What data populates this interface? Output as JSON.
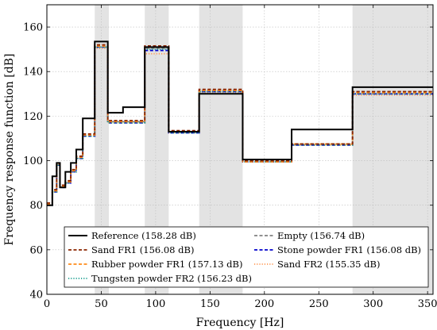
{
  "chart_data": {
    "type": "line",
    "title": "",
    "xlabel": "Frequency [Hz]",
    "ylabel": "Frequency response function [dB]",
    "xlim": [
      0,
      355
    ],
    "ylim": [
      40,
      170
    ],
    "xticks": [
      0,
      50,
      100,
      150,
      200,
      250,
      300,
      350
    ],
    "yticks": [
      40,
      60,
      80,
      100,
      120,
      140,
      160
    ],
    "grid": true,
    "legend_position": "bottom",
    "shaded_bands": [
      [
        44,
        57
      ],
      [
        90,
        112
      ],
      [
        140,
        180
      ],
      [
        281,
        355
      ]
    ],
    "series": [
      {
        "name": "Reference (158.28 dB)",
        "color": "#000000",
        "dash": "solid",
        "steps": [
          [
            0,
            80
          ],
          [
            5,
            93
          ],
          [
            9,
            99
          ],
          [
            12,
            88
          ],
          [
            17,
            95
          ],
          [
            22,
            99
          ],
          [
            27,
            105
          ],
          [
            33,
            119
          ],
          [
            44,
            153.5
          ],
          [
            56,
            121.5
          ],
          [
            70,
            124
          ],
          [
            90,
            151
          ],
          [
            112,
            113
          ],
          [
            140,
            130
          ],
          [
            180,
            100.5
          ],
          [
            225,
            114
          ],
          [
            281,
            133
          ],
          [
            355,
            133
          ]
        ]
      },
      {
        "name": "Sand FR1 (156.08 dB)",
        "color": "#8B2500",
        "dash": "dashed",
        "steps": [
          [
            0,
            81
          ],
          [
            5,
            87
          ],
          [
            9,
            99
          ],
          [
            12,
            89
          ],
          [
            17,
            91
          ],
          [
            22,
            96
          ],
          [
            27,
            102
          ],
          [
            33,
            112
          ],
          [
            44,
            152
          ],
          [
            56,
            118
          ],
          [
            70,
            118
          ],
          [
            90,
            151.5
          ],
          [
            112,
            113.5
          ],
          [
            140,
            132
          ],
          [
            180,
            100
          ],
          [
            225,
            107.5
          ],
          [
            281,
            131
          ],
          [
            355,
            131
          ]
        ]
      },
      {
        "name": "Rubber powder FR1 (157.13 dB)",
        "color": "#FF8C1A",
        "dash": "dashed",
        "steps": [
          [
            0,
            80.5
          ],
          [
            5,
            86.5
          ],
          [
            9,
            98.5
          ],
          [
            12,
            88.5
          ],
          [
            17,
            90.5
          ],
          [
            22,
            95.5
          ],
          [
            27,
            101.5
          ],
          [
            33,
            111.5
          ],
          [
            44,
            151.5
          ],
          [
            56,
            117.5
          ],
          [
            70,
            117.5
          ],
          [
            90,
            151
          ],
          [
            112,
            113
          ],
          [
            140,
            131.5
          ],
          [
            180,
            99.5
          ],
          [
            225,
            107.5
          ],
          [
            281,
            130.5
          ],
          [
            355,
            130.5
          ]
        ]
      },
      {
        "name": "Tungsten powder FR2 (156.23 dB)",
        "color": "#1A9E8F",
        "dash": "dotted",
        "steps": [
          [
            0,
            80
          ],
          [
            5,
            86
          ],
          [
            9,
            98
          ],
          [
            12,
            88
          ],
          [
            17,
            90
          ],
          [
            22,
            95
          ],
          [
            27,
            101
          ],
          [
            33,
            111
          ],
          [
            44,
            151
          ],
          [
            56,
            117
          ],
          [
            70,
            117
          ],
          [
            90,
            150
          ],
          [
            112,
            112.5
          ],
          [
            140,
            131
          ],
          [
            180,
            99.5
          ],
          [
            225,
            107
          ],
          [
            281,
            130
          ],
          [
            355,
            130
          ]
        ]
      },
      {
        "name": "Empty (156.74 dB)",
        "color": "#808080",
        "dash": "dashed",
        "steps": [
          [
            0,
            80.5
          ],
          [
            5,
            86.5
          ],
          [
            9,
            98.5
          ],
          [
            12,
            88.5
          ],
          [
            17,
            90.5
          ],
          [
            22,
            95.5
          ],
          [
            27,
            101.5
          ],
          [
            33,
            111.5
          ],
          [
            44,
            151
          ],
          [
            56,
            117.5
          ],
          [
            70,
            117.5
          ],
          [
            90,
            150.5
          ],
          [
            112,
            113
          ],
          [
            140,
            131.5
          ],
          [
            180,
            100
          ],
          [
            225,
            107.5
          ],
          [
            281,
            131
          ],
          [
            355,
            131
          ]
        ]
      },
      {
        "name": "Stone powder FR1 (156.08 dB)",
        "color": "#0000CC",
        "dash": "dashed",
        "steps": [
          [
            0,
            80
          ],
          [
            5,
            86
          ],
          [
            9,
            98
          ],
          [
            12,
            88
          ],
          [
            17,
            90
          ],
          [
            22,
            95
          ],
          [
            27,
            101
          ],
          [
            33,
            111
          ],
          [
            44,
            151
          ],
          [
            56,
            117
          ],
          [
            70,
            117
          ],
          [
            90,
            149.5
          ],
          [
            112,
            112.5
          ],
          [
            140,
            131
          ],
          [
            180,
            99.5
          ],
          [
            225,
            107
          ],
          [
            281,
            130
          ],
          [
            355,
            130
          ]
        ]
      },
      {
        "name": "Sand FR2 (155.35 dB)",
        "color": "#FF9955",
        "dash": "dotted",
        "steps": [
          [
            0,
            80
          ],
          [
            5,
            86
          ],
          [
            9,
            98
          ],
          [
            12,
            88
          ],
          [
            17,
            90
          ],
          [
            22,
            95
          ],
          [
            27,
            101
          ],
          [
            33,
            111
          ],
          [
            44,
            150.5
          ],
          [
            56,
            117
          ],
          [
            70,
            117
          ],
          [
            90,
            148
          ],
          [
            112,
            112.5
          ],
          [
            140,
            130.5
          ],
          [
            180,
            99.5
          ],
          [
            225,
            107
          ],
          [
            281,
            129.5
          ],
          [
            355,
            129.5
          ]
        ]
      }
    ]
  }
}
